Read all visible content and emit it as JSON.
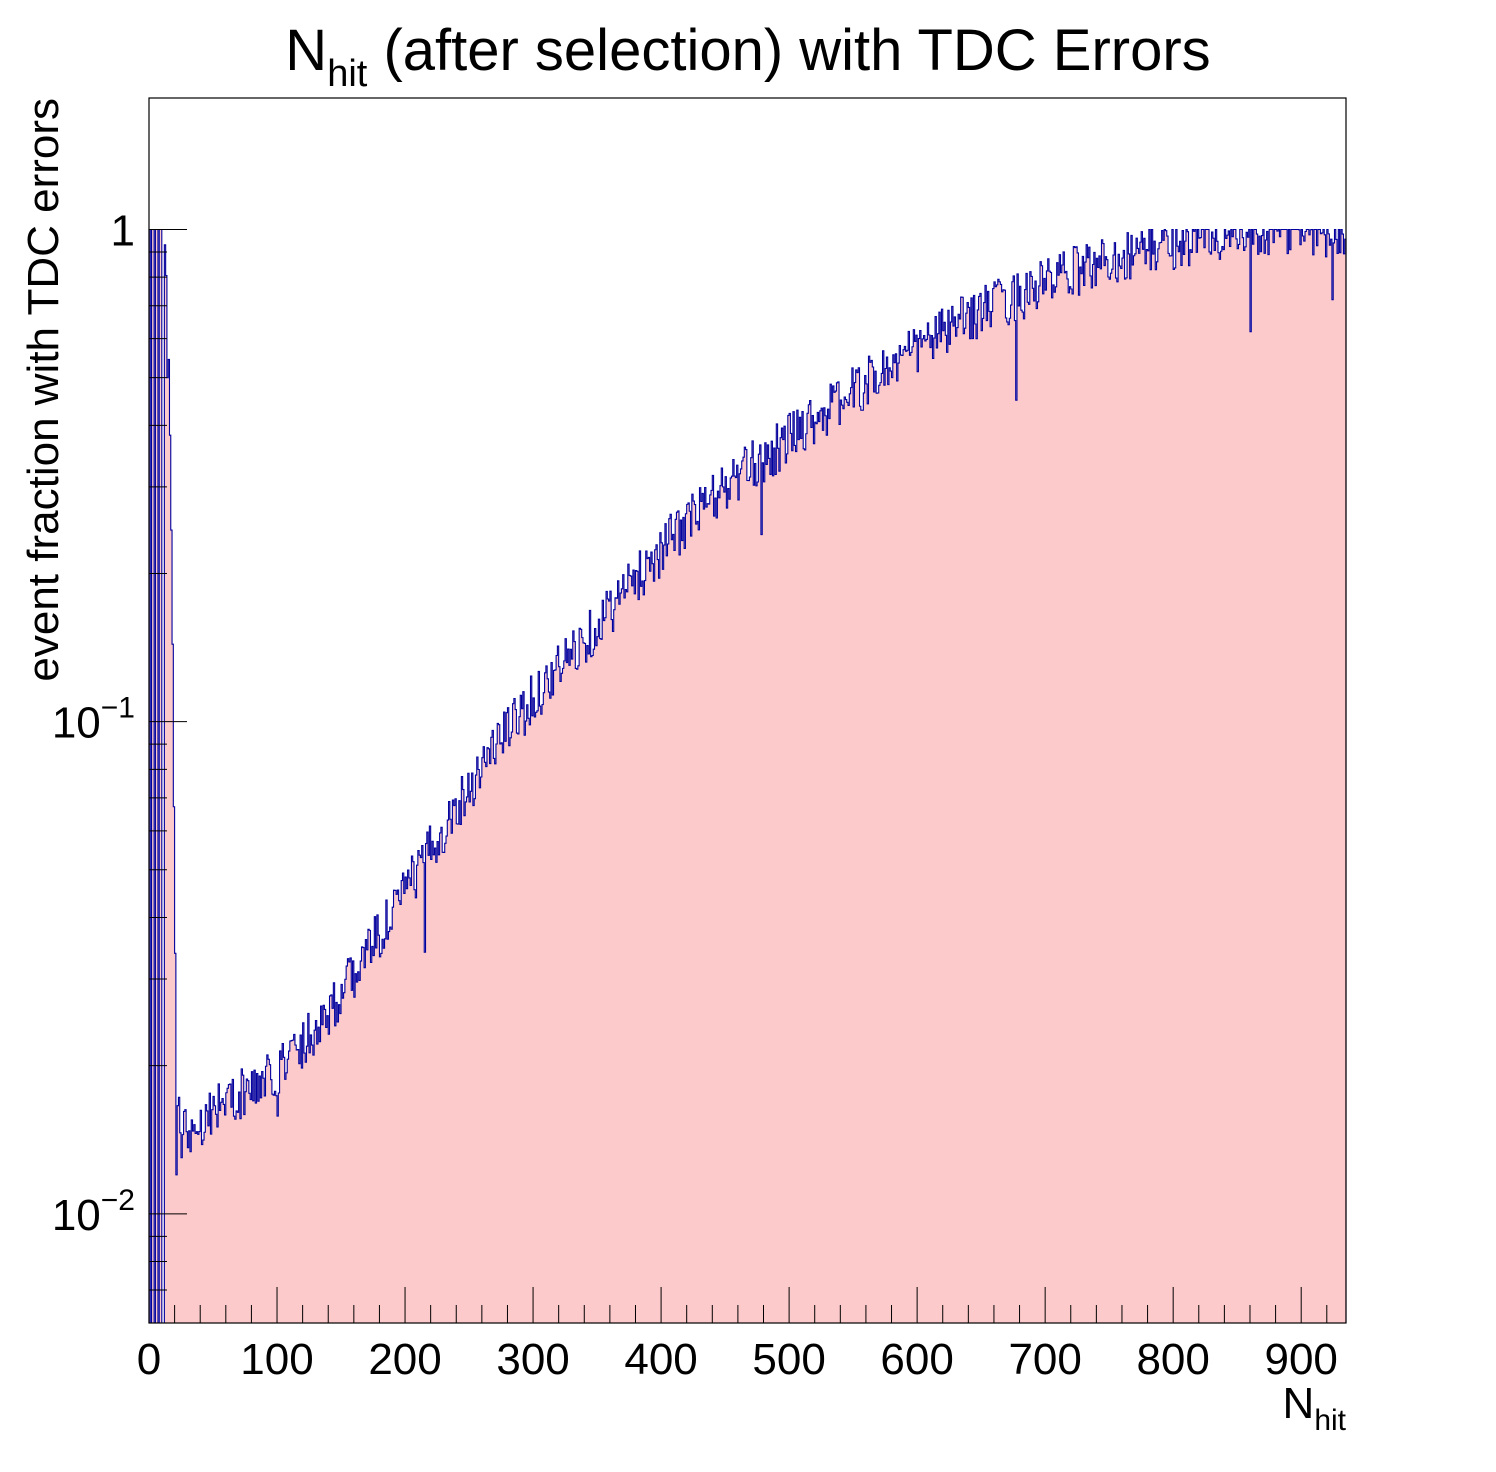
{
  "chart_data": {
    "type": "histogram",
    "title": {
      "main": "N",
      "subscript": "hit",
      "rest": " (after selection) with TDC Errors"
    },
    "xlabel": {
      "main": "N",
      "subscript": "hit"
    },
    "ylabel": "event fraction with TDC errors",
    "xlim": [
      0,
      935
    ],
    "ylim": [
      0.006,
      1.85
    ],
    "yscale": "log",
    "grid": false,
    "legend": "none",
    "x_ticks": [
      {
        "value": 0,
        "label": "0"
      },
      {
        "value": 100,
        "label": "100"
      },
      {
        "value": 200,
        "label": "200"
      },
      {
        "value": 300,
        "label": "300"
      },
      {
        "value": 400,
        "label": "400"
      },
      {
        "value": 500,
        "label": "500"
      },
      {
        "value": 600,
        "label": "600"
      },
      {
        "value": 700,
        "label": "700"
      },
      {
        "value": 800,
        "label": "800"
      },
      {
        "value": 900,
        "label": "900"
      }
    ],
    "y_ticks": [
      {
        "value": 0.01,
        "base": "10",
        "exp": "−2"
      },
      {
        "value": 0.1,
        "base": "10",
        "exp": "−1"
      },
      {
        "value": 1,
        "base": "1",
        "exp": ""
      }
    ],
    "series": [
      {
        "bin_width": 1,
        "line_color": "#00009e",
        "fill_color": "#fccacb",
        "trend_points": [
          [
            0,
            1.0
          ],
          [
            8,
            1.0
          ],
          [
            12,
            1.0
          ],
          [
            15,
            0.65
          ],
          [
            17,
            0.32
          ],
          [
            19,
            0.11
          ],
          [
            20,
            0.041
          ],
          [
            22,
            0.019
          ],
          [
            24,
            0.0155
          ],
          [
            27,
            0.0148
          ],
          [
            35,
            0.015
          ],
          [
            50,
            0.0165
          ],
          [
            70,
            0.0175
          ],
          [
            90,
            0.0185
          ],
          [
            110,
            0.021
          ],
          [
            130,
            0.024
          ],
          [
            150,
            0.028
          ],
          [
            170,
            0.034
          ],
          [
            190,
            0.041
          ],
          [
            210,
            0.05
          ],
          [
            230,
            0.061
          ],
          [
            250,
            0.074
          ],
          [
            270,
            0.09
          ],
          [
            290,
            0.104
          ],
          [
            310,
            0.12
          ],
          [
            330,
            0.138
          ],
          [
            350,
            0.158
          ],
          [
            370,
            0.182
          ],
          [
            390,
            0.21
          ],
          [
            410,
            0.24
          ],
          [
            430,
            0.27
          ],
          [
            450,
            0.3
          ],
          [
            470,
            0.33
          ],
          [
            490,
            0.36
          ],
          [
            510,
            0.4
          ],
          [
            530,
            0.43
          ],
          [
            550,
            0.47
          ],
          [
            570,
            0.51
          ],
          [
            590,
            0.55
          ],
          [
            610,
            0.6
          ],
          [
            630,
            0.64
          ],
          [
            650,
            0.69
          ],
          [
            670,
            0.72
          ],
          [
            690,
            0.76
          ],
          [
            710,
            0.8
          ],
          [
            730,
            0.84
          ],
          [
            750,
            0.87
          ],
          [
            770,
            0.9
          ],
          [
            790,
            0.93
          ],
          [
            810,
            0.95
          ],
          [
            830,
            0.96
          ],
          [
            850,
            0.975
          ],
          [
            870,
            0.985
          ],
          [
            890,
            0.99
          ],
          [
            910,
            0.995
          ],
          [
            935,
            1.0
          ]
        ],
        "dips": [
          {
            "x": 14,
            "value": 0.5
          },
          {
            "x": 21,
            "value": 0.012
          },
          {
            "x": 25,
            "value": 0.013
          },
          {
            "x": 100,
            "value": 0.0158
          },
          {
            "x": 215,
            "value": 0.034
          },
          {
            "x": 478,
            "value": 0.24
          },
          {
            "x": 677,
            "value": 0.45
          },
          {
            "x": 860,
            "value": 0.62
          },
          {
            "x": 924,
            "value": 0.72
          }
        ],
        "fluctuation_pct": 12,
        "saturation_value": 1.0
      }
    ]
  }
}
